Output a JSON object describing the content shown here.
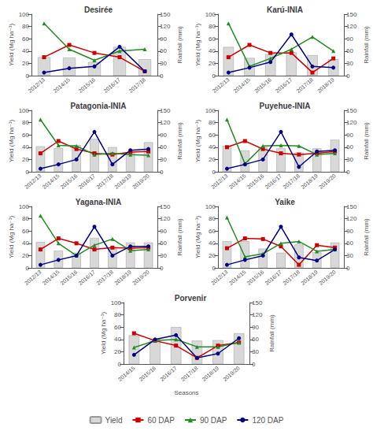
{
  "chart_data": [
    {
      "type": "bar",
      "title": "Desirée",
      "categories": [
        "2012/13",
        "2014/15",
        "2015/16",
        "2016/17",
        "2017/18"
      ],
      "ylabel": "Yield (Mg ha⁻¹)",
      "y2label": "Rainfall (mm)",
      "ylim": [
        0,
        100
      ],
      "yticks": [
        0,
        20,
        40,
        60,
        80,
        100
      ],
      "y2lim": [
        0,
        150
      ],
      "y2ticks": [
        0,
        30,
        60,
        90,
        120,
        150
      ],
      "grid": false,
      "legend": "bottom",
      "series": [
        {
          "name": "Yield",
          "type": "bar",
          "axis": "y2",
          "color": "#d8d8d8",
          "values": [
            45,
            44,
            33,
            70,
            40
          ]
        },
        {
          "name": "60 DAP",
          "type": "line",
          "color": "#cc0000",
          "marker": "square",
          "values": [
            30,
            50,
            37,
            30,
            7
          ]
        },
        {
          "name": "90 DAP",
          "type": "line",
          "color": "#228B22",
          "marker": "triangle",
          "values": [
            85,
            43,
            25,
            40,
            43
          ]
        },
        {
          "name": "120 DAP",
          "type": "line",
          "color": "#000080",
          "marker": "circle",
          "values": [
            5,
            12,
            15,
            47,
            7
          ]
        }
      ]
    },
    {
      "type": "bar",
      "title": "Karú-INIA",
      "categories": [
        "2012/13",
        "2014/15",
        "2015/16",
        "2016/17",
        "2017/18",
        "2018/19"
      ],
      "ylabel": "Yield (Mg ha⁻¹)",
      "y2label": "Rainfall (mm)",
      "ylim": [
        0,
        100
      ],
      "yticks": [
        0,
        20,
        40,
        60,
        80,
        100
      ],
      "y2lim": [
        0,
        150
      ],
      "y2ticks": [
        0,
        30,
        60,
        90,
        120,
        150
      ],
      "grid": false,
      "legend": "bottom",
      "series": [
        {
          "name": "Yield",
          "type": "bar",
          "axis": "y2",
          "color": "#d8d8d8",
          "values": [
            70,
            43,
            52,
            57,
            50,
            40
          ]
        },
        {
          "name": "60 DAP",
          "type": "line",
          "color": "#cc0000",
          "marker": "square",
          "values": [
            30,
            50,
            37,
            37,
            5,
            28
          ]
        },
        {
          "name": "90 DAP",
          "type": "line",
          "color": "#228B22",
          "marker": "triangle",
          "values": [
            85,
            15,
            28,
            43,
            63,
            40
          ]
        },
        {
          "name": "120 DAP",
          "type": "line",
          "color": "#000080",
          "marker": "circle",
          "values": [
            5,
            13,
            22,
            67,
            15,
            13
          ]
        }
      ]
    },
    {
      "type": "bar",
      "title": "Patagonia-INIA",
      "categories": [
        "2012/13",
        "2014/15",
        "2015/16",
        "2016/17",
        "2017/18",
        "2018/19",
        "2019/20"
      ],
      "ylabel": "Yield (Mg ha⁻¹)",
      "y2label": "Rainfall (mm)",
      "ylim": [
        0,
        100
      ],
      "yticks": [
        0,
        20,
        40,
        60,
        80,
        100
      ],
      "y2lim": [
        0,
        150
      ],
      "y2ticks": [
        0,
        30,
        60,
        90,
        120,
        150
      ],
      "grid": false,
      "legend": "bottom",
      "series": [
        {
          "name": "Yield",
          "type": "bar",
          "axis": "y2",
          "color": "#d8d8d8",
          "values": [
            62,
            58,
            65,
            80,
            60,
            47,
            72
          ]
        },
        {
          "name": "60 DAP",
          "type": "line",
          "color": "#cc0000",
          "marker": "square",
          "values": [
            30,
            50,
            37,
            30,
            28,
            32,
            33
          ]
        },
        {
          "name": "90 DAP",
          "type": "line",
          "color": "#228B22",
          "marker": "triangle",
          "values": [
            85,
            43,
            42,
            28,
            30,
            28,
            27
          ]
        },
        {
          "name": "120 DAP",
          "type": "line",
          "color": "#000080",
          "marker": "circle",
          "values": [
            5,
            12,
            20,
            65,
            12,
            35,
            37
          ]
        }
      ]
    },
    {
      "type": "bar",
      "title": "Puyehue-INIA",
      "categories": [
        "2012/13",
        "2014/15",
        "2015/16",
        "2016/17",
        "2017/18",
        "2018/19",
        "2019/20"
      ],
      "ylabel": "Yield (Mg ha⁻¹)",
      "y2label": "Rainfall (mm)",
      "ylim": [
        0,
        100
      ],
      "yticks": [
        0,
        20,
        40,
        60,
        80,
        100
      ],
      "y2lim": [
        0,
        150
      ],
      "y2ticks": [
        0,
        30,
        60,
        90,
        120,
        150
      ],
      "grid": false,
      "legend": "bottom",
      "series": [
        {
          "name": "Yield",
          "type": "bar",
          "axis": "y2",
          "color": "#d8d8d8",
          "values": [
            63,
            52,
            60,
            57,
            47,
            57,
            78
          ]
        },
        {
          "name": "60 DAP",
          "type": "line",
          "color": "#cc0000",
          "marker": "square",
          "values": [
            40,
            50,
            37,
            30,
            28,
            30,
            33
          ]
        },
        {
          "name": "90 DAP",
          "type": "line",
          "color": "#228B22",
          "marker": "triangle",
          "values": [
            85,
            13,
            42,
            43,
            42,
            28,
            30
          ]
        },
        {
          "name": "120 DAP",
          "type": "line",
          "color": "#000080",
          "marker": "circle",
          "values": [
            5,
            12,
            20,
            65,
            8,
            33,
            35
          ]
        }
      ]
    },
    {
      "type": "bar",
      "title": "Yagana-INIA",
      "categories": [
        "2012/13",
        "2014/15",
        "2015/16",
        "2016/17",
        "2017/18",
        "2018/19",
        "2019/20"
      ],
      "ylabel": "Yield (Mg ha⁻¹)",
      "y2label": "Rainfall (mm)",
      "ylim": [
        0,
        100
      ],
      "yticks": [
        0,
        20,
        40,
        60,
        80,
        100
      ],
      "y2lim": [
        0,
        150
      ],
      "y2ticks": [
        0,
        30,
        60,
        90,
        120,
        150
      ],
      "grid": false,
      "legend": "bottom",
      "series": [
        {
          "name": "Yield",
          "type": "bar",
          "axis": "y2",
          "color": "#d8d8d8",
          "values": [
            63,
            42,
            37,
            73,
            47,
            62,
            62
          ]
        },
        {
          "name": "60 DAP",
          "type": "line",
          "color": "#cc0000",
          "marker": "square",
          "values": [
            30,
            48,
            40,
            30,
            33,
            32,
            33
          ]
        },
        {
          "name": "90 DAP",
          "type": "line",
          "color": "#228B22",
          "marker": "triangle",
          "values": [
            85,
            40,
            20,
            37,
            47,
            28,
            30
          ]
        },
        {
          "name": "120 DAP",
          "type": "line",
          "color": "#000080",
          "marker": "circle",
          "values": [
            5,
            13,
            20,
            67,
            20,
            35,
            35
          ]
        }
      ]
    },
    {
      "type": "bar",
      "title": "Yaike",
      "categories": [
        "2012/13",
        "2014/15",
        "2015/16",
        "2016/17",
        "2017/18",
        "2018/19",
        "2019/20"
      ],
      "ylabel": "Yield (Mg ha⁻¹)",
      "y2label": "Rainfall (mm)",
      "ylim": [
        0,
        100
      ],
      "yticks": [
        0,
        20,
        40,
        60,
        80,
        100
      ],
      "y2lim": [
        0,
        150
      ],
      "y2ticks": [
        0,
        30,
        60,
        90,
        120,
        150
      ],
      "grid": false,
      "legend": "bottom",
      "series": [
        {
          "name": "Yield",
          "type": "bar",
          "axis": "y2",
          "color": "#d8d8d8",
          "values": [
            65,
            65,
            47,
            37,
            57,
            38,
            62
          ]
        },
        {
          "name": "60 DAP",
          "type": "line",
          "color": "#cc0000",
          "marker": "square",
          "values": [
            32,
            48,
            47,
            35,
            5,
            37,
            33
          ]
        },
        {
          "name": "90 DAP",
          "type": "line",
          "color": "#228B22",
          "marker": "triangle",
          "values": [
            82,
            18,
            23,
            40,
            43,
            27,
            30
          ]
        },
        {
          "name": "120 DAP",
          "type": "line",
          "color": "#000080",
          "marker": "circle",
          "values": [
            5,
            13,
            20,
            67,
            17,
            12,
            30
          ]
        }
      ]
    },
    {
      "type": "bar",
      "title": "Porvenir",
      "categories": [
        "2014/15",
        "2015/16",
        "2016/17",
        "2017/18",
        "2018/19",
        "2019/20"
      ],
      "xlabel": "Seasons",
      "ylabel": "Yield (Mg ha⁻¹)",
      "y2label": "Rainfall (mm)",
      "ylim": [
        0,
        100
      ],
      "yticks": [
        0,
        20,
        40,
        60,
        80,
        100
      ],
      "y2lim": [
        0,
        150
      ],
      "y2ticks": [
        0,
        30,
        60,
        90,
        120,
        150
      ],
      "grid": false,
      "legend": "bottom",
      "series": [
        {
          "name": "Yield",
          "type": "bar",
          "axis": "y2",
          "color": "#d8d8d8",
          "values": [
            70,
            62,
            90,
            57,
            58,
            75
          ]
        },
        {
          "name": "60 DAP",
          "type": "line",
          "color": "#cc0000",
          "marker": "square",
          "values": [
            50,
            38,
            30,
            10,
            30,
            35
          ]
        },
        {
          "name": "90 DAP",
          "type": "line",
          "color": "#228B22",
          "marker": "triangle",
          "values": [
            27,
            38,
            40,
            28,
            28,
            35
          ]
        },
        {
          "name": "120 DAP",
          "type": "line",
          "color": "#000080",
          "marker": "circle",
          "values": [
            15,
            40,
            47,
            10,
            17,
            42
          ]
        }
      ]
    }
  ]
}
